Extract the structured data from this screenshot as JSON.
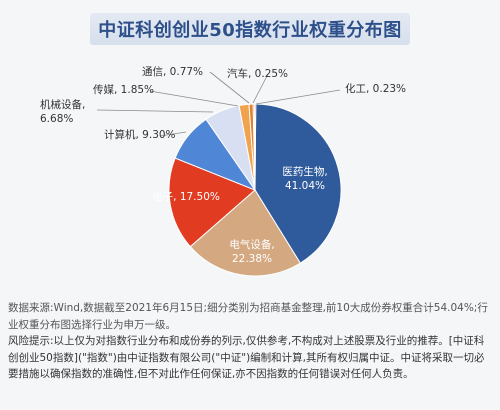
{
  "title": "中证科创创业50指数行业权重分布图",
  "chart_data": {
    "type": "pie",
    "slices": [
      {
        "label": "医药生物,",
        "pct": "41.04%",
        "value": 41.04,
        "color": "#2f5a9b"
      },
      {
        "label": "电气设备,",
        "pct": "22.38%",
        "value": 22.38,
        "color": "#d4a982"
      },
      {
        "label": "电子,",
        "pct": "17.50%",
        "value": 17.5,
        "color": "#e13b22"
      },
      {
        "label": "计算机,",
        "pct": "9.30%",
        "value": 9.3,
        "color": "#4f86d6"
      },
      {
        "label": "机械设备,",
        "pct": "6.68%",
        "value": 6.68,
        "color": "#d8dff2"
      },
      {
        "label": "传媒,",
        "pct": "1.85%",
        "value": 1.85,
        "color": "#f0a34c"
      },
      {
        "label": "通信,",
        "pct": "0.77%",
        "value": 0.77,
        "color": "#e0832e"
      },
      {
        "label": "汽车,",
        "pct": "0.25%",
        "value": 0.25,
        "color": "#e2562a"
      },
      {
        "label": "化工,",
        "pct": "0.23%",
        "value": 0.23,
        "color": "#c5302a"
      }
    ]
  },
  "notes": {
    "source": "数据来源:Wind,数据截至2021年6月15日;细分类别为招商基金整理,前10大成份券权重合计54.04%;行业权重分布图选择行业为申万一级。",
    "risk": "风险提示:以上仅为对指数行业分布和成份券的列示,仅供参考,不构成对上述股票及行业的推荐。[中证科创创业50指数](\"指数\")由中证指数有限公司(\"中证\")编制和计算,其所有权归属中证。中证将采取一切必要措施以确保指数的准确性,但不对此作任何保证,亦不因指数的任何错误对任何人负责。"
  }
}
